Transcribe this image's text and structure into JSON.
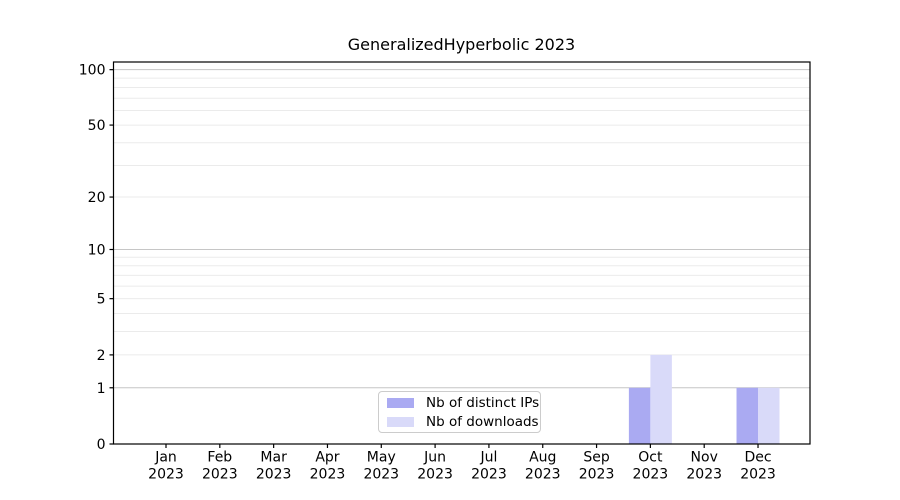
{
  "title": "GeneralizedHyperbolic 2023",
  "chart_data": {
    "type": "bar",
    "title": "GeneralizedHyperbolic 2023",
    "categories": [
      "Jan 2023",
      "Feb 2023",
      "Mar 2023",
      "Apr 2023",
      "May 2023",
      "Jun 2023",
      "Jul 2023",
      "Aug 2023",
      "Sep 2023",
      "Oct 2023",
      "Nov 2023",
      "Dec 2023"
    ],
    "series": [
      {
        "name": "Nb of distinct IPs",
        "color": "#aaaaf2",
        "values": [
          0,
          0,
          0,
          0,
          0,
          0,
          0,
          0,
          0,
          1,
          0,
          1
        ]
      },
      {
        "name": "Nb of downloads",
        "color": "#d9daf9",
        "values": [
          0,
          0,
          0,
          0,
          0,
          0,
          0,
          0,
          0,
          2,
          0,
          1
        ]
      }
    ],
    "xlabel": "",
    "ylabel": "",
    "yscale": "log1p",
    "ylim": [
      0,
      110
    ],
    "y_tick_labels": [
      0,
      1,
      2,
      5,
      10,
      20,
      50,
      100
    ],
    "y_decade_gridlines": [
      1,
      10,
      100
    ],
    "y_minor_gridlines": [
      2,
      3,
      4,
      5,
      6,
      7,
      8,
      9,
      20,
      30,
      40,
      50,
      60,
      70,
      80,
      90
    ],
    "grid": "horizontal",
    "legend_position": "lower center inside",
    "colors": {
      "background": "#ffffff",
      "spine": "#000000",
      "major_grid": "#c6c6c6",
      "minor_grid": "#ebebeb",
      "text": "#000000",
      "legend_border": "#cccccc"
    }
  }
}
